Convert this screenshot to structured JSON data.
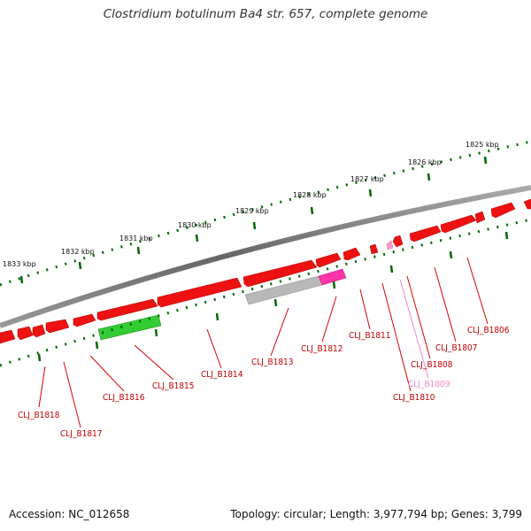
{
  "title": "Clostridium botulinum Ba4 str. 657, complete genome",
  "footer": {
    "accession": "Accession: NC_012658",
    "summary": "Topology: circular; Length: 3,977,794 bp; Genes: 3,799"
  },
  "colors": {
    "cds": "#ee1111",
    "rna": "#33cc33",
    "pseudo": "#aaaaaa",
    "misc": "#ff33aa",
    "ticks": "#006600",
    "label": "#c00000",
    "label_alt": "#ee88cc"
  },
  "scale_labels": [
    "1825 kbp",
    "1826 kbp",
    "1827 kbp",
    "1828 kbp",
    "1829 kbp",
    "1830 kbp",
    "1831 kbp",
    "1832 kbp",
    "1833 kbp"
  ],
  "gene_labels": [
    "CLJ_B1806",
    "CLJ_B1807",
    "CLJ_B1808",
    "CLJ_B1809",
    "CLJ_B1810",
    "CLJ_B1811",
    "CLJ_B1812",
    "CLJ_B1813",
    "CLJ_B1814",
    "CLJ_B1815",
    "CLJ_B1816",
    "CLJ_B1817",
    "CLJ_B1818"
  ]
}
